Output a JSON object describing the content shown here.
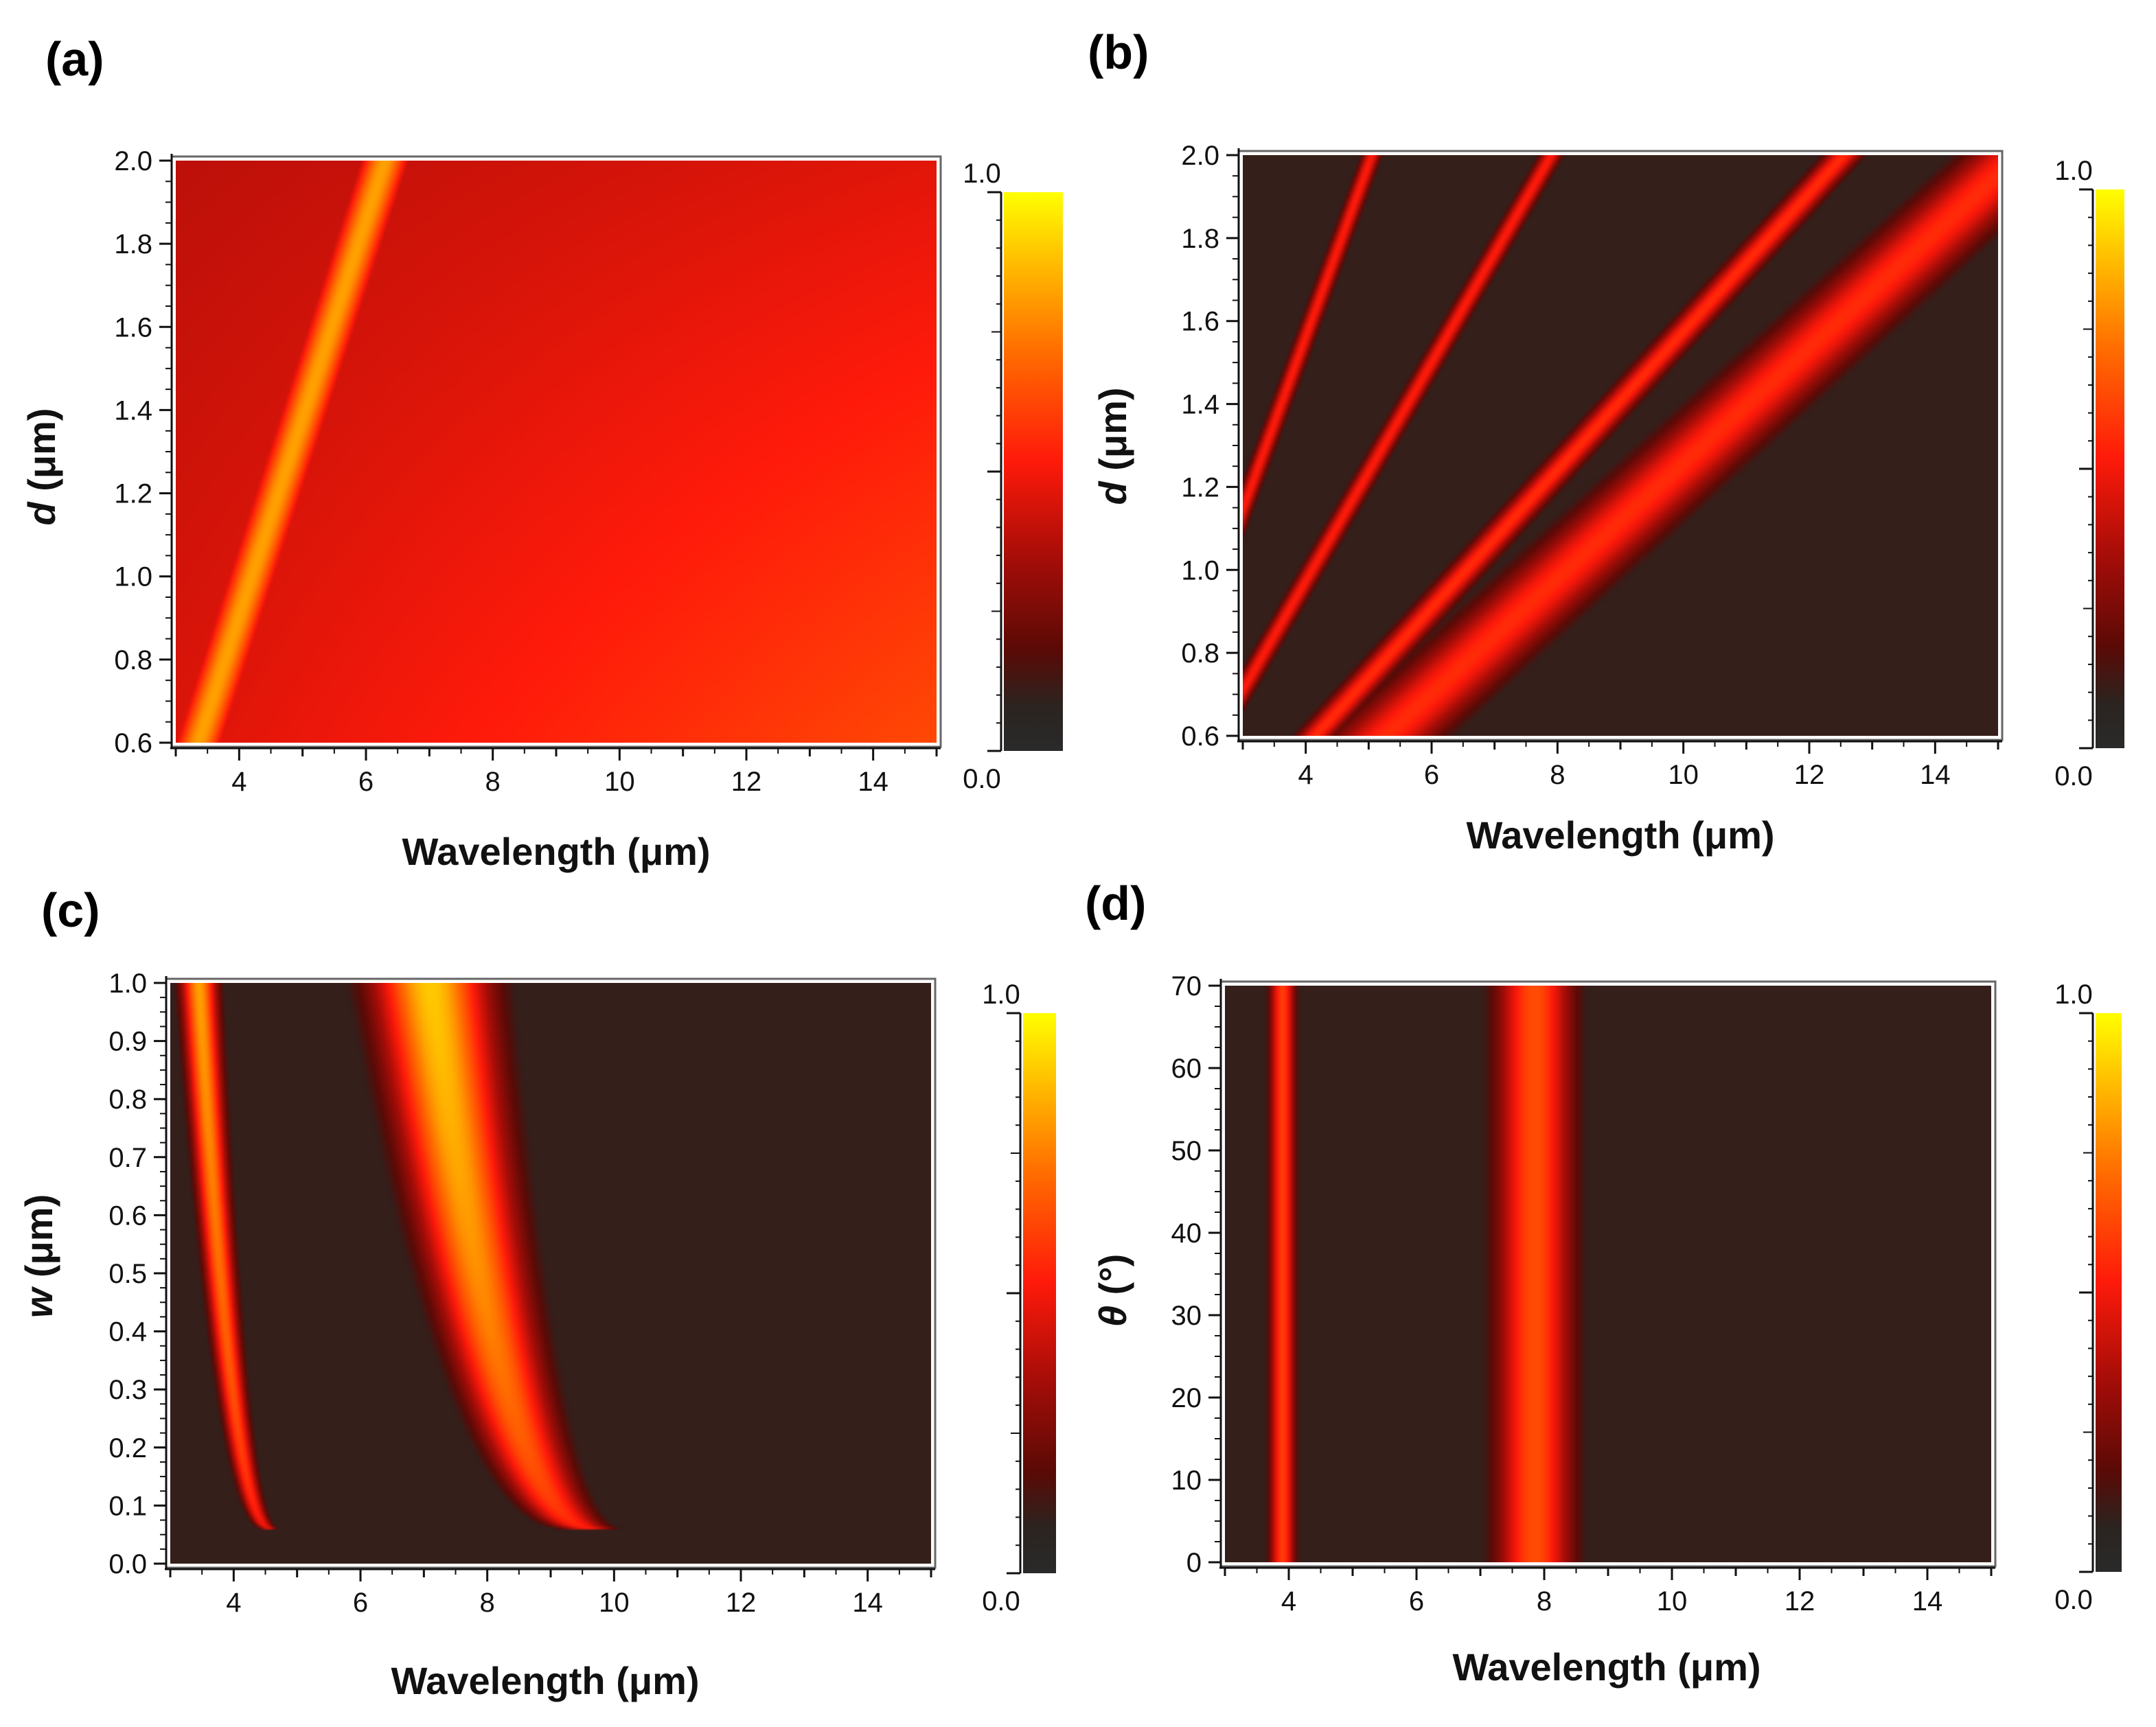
{
  "chart_data": [
    {
      "panel": "(a)",
      "type": "heatmap",
      "xlabel": "Wavelength (μm)",
      "ylabel_italic": "d",
      "ylabel_rest": " (μm)",
      "xlim": [
        3,
        15
      ],
      "ylim": [
        0.6,
        2.0
      ],
      "xticks": [
        4,
        6,
        8,
        10,
        12,
        14
      ],
      "yticks": [
        0.6,
        0.8,
        1.0,
        1.2,
        1.4,
        1.6,
        1.8,
        2.0
      ],
      "ytick_decimals": 1,
      "colorbar": {
        "min_label": "0.0",
        "max_label": "1.0",
        "min": 0,
        "max": 1
      },
      "background": {
        "base": 0.45,
        "x_gradient": 0.18,
        "y_gradient": -0.12
      },
      "bands": [
        {
          "x0": 2.1,
          "slope_dx_dy": 2.1,
          "width": 0.45,
          "peak": 0.82
        }
      ]
    },
    {
      "panel": "(b)",
      "type": "heatmap",
      "xlabel": "Wavelength (μm)",
      "ylabel_italic": "d",
      "ylabel_rest": " (μm)",
      "xlim": [
        3,
        15
      ],
      "ylim": [
        0.6,
        2.0
      ],
      "xticks": [
        4,
        6,
        8,
        10,
        12,
        14
      ],
      "yticks": [
        0.6,
        0.8,
        1.0,
        1.2,
        1.4,
        1.6,
        1.8,
        2.0
      ],
      "ytick_decimals": 1,
      "colorbar": {
        "min_label": "0.0",
        "max_label": "1.0",
        "min": 0,
        "max": 1
      },
      "background": {
        "base": 0.1,
        "x_gradient": 0,
        "y_gradient": 0
      },
      "bands": [
        {
          "x0": 0.25,
          "slope_dx_dy": 2.4,
          "width": 0.15,
          "peak": 0.52
        },
        {
          "x0": 0.3,
          "slope_dx_dy": 3.8,
          "width": 0.18,
          "peak": 0.52
        },
        {
          "x0": 0.55,
          "slope_dx_dy": 6.0,
          "width": 0.3,
          "peak": 0.56
        },
        {
          "x0": 0.95,
          "slope_dx_dy": 7.2,
          "width": 0.85,
          "peak": 0.56
        }
      ]
    },
    {
      "panel": "(c)",
      "type": "heatmap",
      "xlabel": "Wavelength (μm)",
      "ylabel_italic": "w",
      "ylabel_rest": " (μm)",
      "xlim": [
        3,
        15
      ],
      "ylim": [
        0.0,
        1.0
      ],
      "xticks": [
        4,
        6,
        8,
        10,
        12,
        14
      ],
      "yticks": [
        0.0,
        0.1,
        0.2,
        0.3,
        0.4,
        0.5,
        0.6,
        0.7,
        0.8,
        0.9,
        1.0
      ],
      "ytick_decimals": 1,
      "colorbar": {
        "min_label": "0.0",
        "max_label": "1.0",
        "min": 0,
        "max": 1
      },
      "background": {
        "base": 0.1,
        "x_gradient": 0,
        "y_gradient": 0
      },
      "resonances": [
        {
          "center_at_top": 3.45,
          "center_at_bottom": 4.6,
          "width": 0.28,
          "peak": 0.82,
          "end_w": 0.06
        },
        {
          "center_at_top": 7.1,
          "center_at_bottom": 9.7,
          "width": 0.9,
          "peak": 0.9,
          "end_w": 0.06
        }
      ]
    },
    {
      "panel": "(d)",
      "type": "heatmap",
      "xlabel": "Wavelength (μm)",
      "ylabel_italic": "θ",
      "ylabel_rest": " (°)",
      "xlim": [
        3,
        15
      ],
      "ylim": [
        0,
        70
      ],
      "xticks": [
        4,
        6,
        8,
        10,
        12,
        14
      ],
      "yticks": [
        0,
        10,
        20,
        30,
        40,
        50,
        60,
        70
      ],
      "ytick_decimals": 0,
      "colorbar": {
        "min_label": "0.0",
        "max_label": "1.0",
        "min": 0,
        "max": 1
      },
      "background": {
        "base": 0.1,
        "x_gradient": 0,
        "y_gradient": 0
      },
      "vertical_bands": [
        {
          "center": 3.9,
          "width": 0.2,
          "peak": 0.6
        },
        {
          "center": 7.85,
          "width": 0.6,
          "peak": 0.64
        }
      ]
    }
  ]
}
